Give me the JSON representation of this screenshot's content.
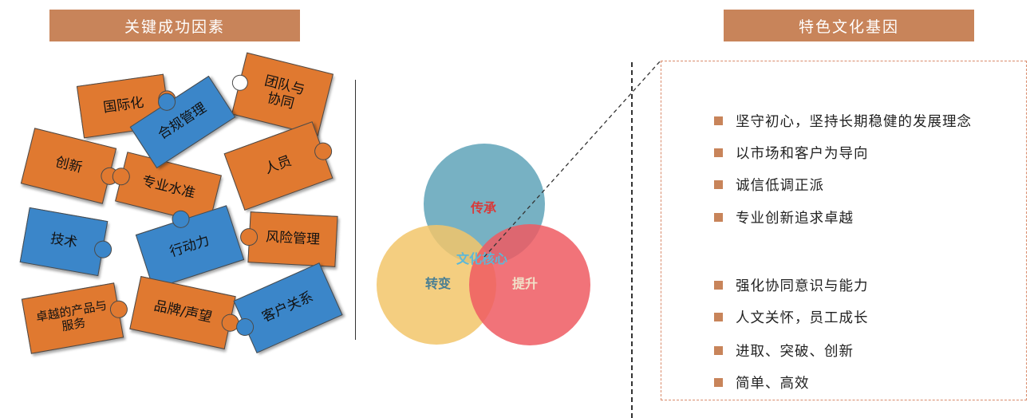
{
  "left_title": "关键成功因素",
  "right_title": "特色文化基因",
  "puzzle_pieces": [
    {
      "label": "国际化",
      "color": "orange"
    },
    {
      "label": "合规管理",
      "color": "blue"
    },
    {
      "label": "团队与协同",
      "color": "orange"
    },
    {
      "label": "创新",
      "color": "orange"
    },
    {
      "label": "专业水准",
      "color": "orange"
    },
    {
      "label": "人员",
      "color": "orange"
    },
    {
      "label": "技术",
      "color": "blue"
    },
    {
      "label": "行动力",
      "color": "blue"
    },
    {
      "label": "风险管理",
      "color": "orange"
    },
    {
      "label": "卓越的产品与服务",
      "color": "orange"
    },
    {
      "label": "品牌/声望",
      "color": "orange"
    },
    {
      "label": "客户关系",
      "color": "blue"
    }
  ],
  "venn": {
    "center_label": "文化核心",
    "circles": [
      {
        "label": "传承",
        "color": "#5fa3b8"
      },
      {
        "label": "转变",
        "color": "#f2c66a"
      },
      {
        "label": "提升",
        "color": "#ee5a62"
      }
    ]
  },
  "culture_values": [
    "坚守初心，坚持长期稳健的发展理念",
    "以市场和客户为导向",
    "诚信低调正派",
    "专业创新追求卓越",
    "强化协同意识与能力",
    "人文关怀，员工成长",
    "进取、突破、创新",
    "简单、高效"
  ],
  "colors": {
    "banner": "#c8845a",
    "puzzle_orange": "#e07930",
    "puzzle_blue": "#3b86c9",
    "bullet": "#c8845a"
  }
}
